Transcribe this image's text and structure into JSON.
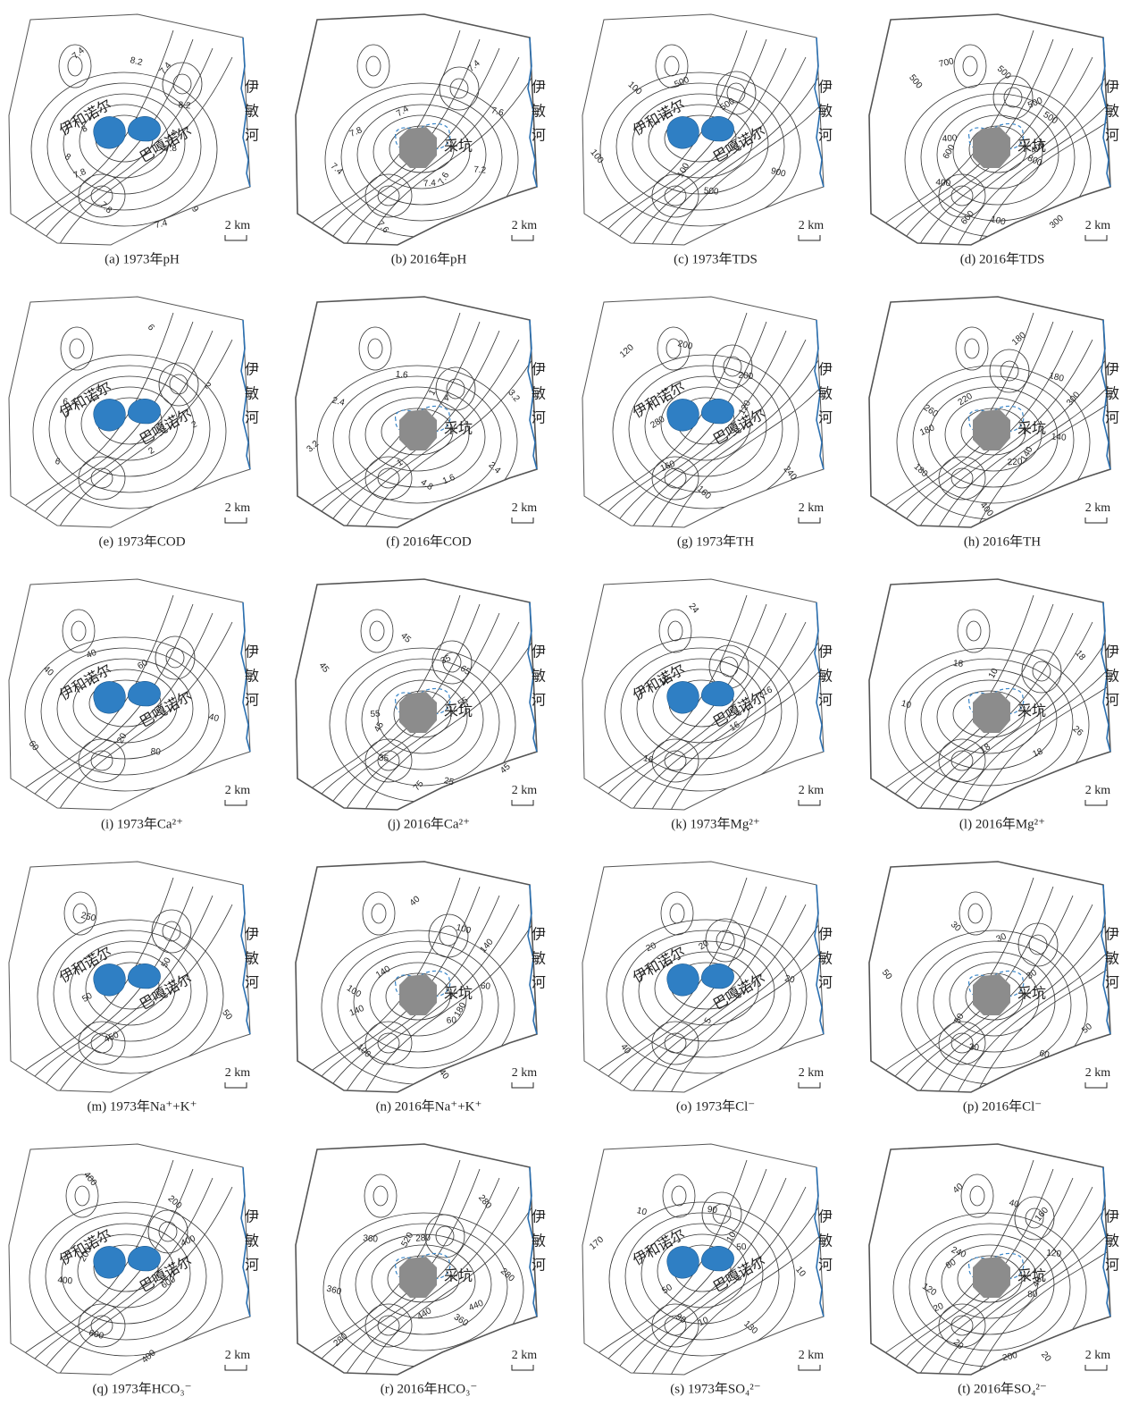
{
  "river": [
    "伊",
    "敏",
    "河"
  ],
  "scale": "2 km",
  "panels": [
    {
      "caption": "(a) 1973年pH",
      "labels": [
        "伊和诺尔",
        "巴嘎诺尔"
      ],
      "contours": [
        "7.4",
        "7.8",
        "8.2",
        "9",
        "8",
        "8.2",
        "7.8",
        "7.4",
        "7.8",
        "8",
        "7.4",
        "7.4"
      ]
    },
    {
      "caption": "(b) 2016年pH",
      "labels": [
        "采坑"
      ],
      "contours": [
        "7.6",
        "7.8",
        "7.6",
        "7.6",
        "7.4",
        "7.2",
        "7.4",
        "7.4",
        "7.4"
      ]
    },
    {
      "caption": "(c) 1973年TDS",
      "labels": [
        "伊和诺尔",
        "巴嘎诺尔"
      ],
      "contours": [
        "100",
        "500",
        "900",
        "100",
        "500",
        "500",
        "100"
      ]
    },
    {
      "caption": "(d) 2016年TDS",
      "labels": [
        "采坑"
      ],
      "contours": [
        "600",
        "500",
        "100",
        "500",
        "400",
        "400",
        "500",
        "300",
        "400",
        "500",
        "600",
        "700",
        "800"
      ]
    },
    {
      "caption": "(e) 1973年COD",
      "labels": [
        "伊和诺尔",
        "巴嘎诺尔"
      ],
      "contours": [
        "6",
        "2",
        "6",
        "6",
        "2",
        "6",
        "2"
      ]
    },
    {
      "caption": "(f) 2016年COD",
      "labels": [
        "采坑"
      ],
      "contours": [
        "1",
        "1.6",
        "2.4",
        "3.2",
        "1",
        "1.6",
        "2.4",
        "3.2",
        "4",
        "4.8"
      ]
    },
    {
      "caption": "(g) 1973年TH",
      "labels": [
        "伊和诺尔",
        "巴嘎诺尔"
      ],
      "contours": [
        "120",
        "160",
        "200",
        "240",
        "280",
        "200",
        "160",
        "120"
      ]
    },
    {
      "caption": "(h) 2016年TH",
      "labels": [
        "采坑"
      ],
      "contours": [
        "140",
        "180",
        "180",
        "400",
        "220",
        "140",
        "180",
        "180",
        "220",
        "260",
        "300"
      ]
    },
    {
      "caption": "(i) 1973年Ca²⁺",
      "labels": [
        "伊和诺尔",
        "巴嘎诺尔"
      ],
      "contours": [
        "20",
        "40",
        "40",
        "60",
        "60",
        "80",
        "40"
      ]
    },
    {
      "caption": "(j) 2016年Ca²⁺",
      "labels": [
        "采坑"
      ],
      "contours": [
        "45",
        "35",
        "25",
        "45",
        "55",
        "35",
        "45",
        "45",
        "55",
        "65",
        "75"
      ]
    },
    {
      "caption": "(k) 1973年Mg²⁺",
      "labels": [
        "伊和诺尔",
        "巴嘎诺尔"
      ],
      "contours": [
        "16",
        "16",
        "16",
        "24",
        "16"
      ]
    },
    {
      "caption": "(l) 2016年Mg²⁺",
      "labels": [
        "采坑"
      ],
      "contours": [
        "10",
        "18",
        "10",
        "18",
        "18",
        "18",
        "26"
      ]
    },
    {
      "caption": "(m) 1973年Na⁺+K⁺",
      "labels": [
        "伊和诺尔",
        "巴嘎诺尔"
      ],
      "contours": [
        "50",
        "450",
        "250",
        "50",
        "50"
      ]
    },
    {
      "caption": "(n) 2016年Na⁺+K⁺",
      "labels": [
        "采坑"
      ],
      "contours": [
        "180",
        "140",
        "100",
        "40",
        "140",
        "60",
        "100",
        "40",
        "60",
        "100",
        "140"
      ]
    },
    {
      "caption": "(o) 1973年Cl⁻",
      "labels": [
        "伊和诺尔",
        "巴嘎诺尔"
      ],
      "contours": [
        "5",
        "20",
        "20",
        "40",
        "20"
      ]
    },
    {
      "caption": "(p) 2016年Cl⁻",
      "labels": [
        "采坑"
      ],
      "contours": [
        "50",
        "30",
        "60",
        "50",
        "30",
        "30",
        "30",
        "50"
      ]
    },
    {
      "caption": "(q) 1973年HCO₃⁻",
      "labels": [
        "伊和诺尔",
        "巴嘎诺尔"
      ],
      "contours": [
        "200",
        "400",
        "600",
        "400",
        "600",
        "400",
        "200",
        "400"
      ]
    },
    {
      "caption": "(r) 2016年HCO₃⁻",
      "labels": [
        "采坑"
      ],
      "contours": [
        "520",
        "440",
        "360",
        "280",
        "440",
        "360",
        "280",
        "280",
        "280",
        "360"
      ]
    },
    {
      "caption": "(s) 1973年SO₄²⁻",
      "labels": [
        "伊和诺尔",
        "巴嘎诺尔"
      ],
      "contours": [
        "10",
        "10",
        "10",
        "10",
        "50",
        "90",
        "130",
        "170",
        "50",
        "90"
      ]
    },
    {
      "caption": "(t) 2016年SO₄²⁻",
      "labels": [
        "采坑"
      ],
      "contours": [
        "40",
        "20",
        "40",
        "20",
        "80",
        "120",
        "20",
        "40",
        "80",
        "120",
        "160",
        "200",
        "240"
      ]
    }
  ]
}
